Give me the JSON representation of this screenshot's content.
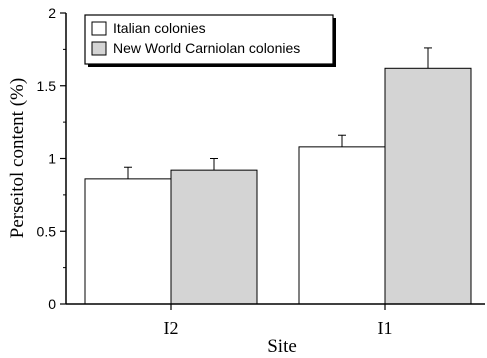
{
  "chart_data": {
    "type": "bar",
    "categories": [
      "I2",
      "I1"
    ],
    "series": [
      {
        "name": "Italian colonies",
        "values": [
          0.86,
          1.08
        ],
        "errors": [
          0.08,
          0.08
        ],
        "color": "#ffffff"
      },
      {
        "name": "New World Carniolan colonies",
        "values": [
          0.92,
          1.62
        ],
        "errors": [
          0.08,
          0.14
        ],
        "color": "#d4d4d4"
      }
    ],
    "xlabel": "Site",
    "ylabel": "Perseitol content (%)",
    "ylim": [
      0,
      2
    ],
    "yticks": [
      "0",
      "0.5",
      "1",
      "1.5",
      "2"
    ],
    "grid": false,
    "legend_position": "top-left"
  }
}
